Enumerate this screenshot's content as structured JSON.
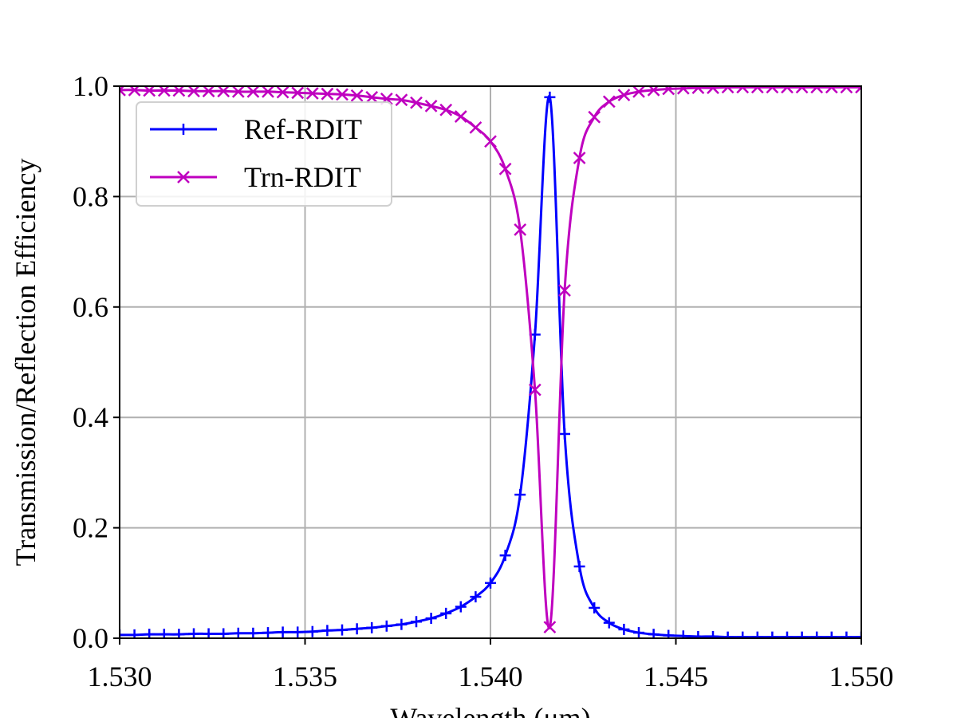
{
  "chart_data": {
    "type": "line",
    "title": "",
    "xlabel": "Wavelength (μm)",
    "ylabel": "Transmission/Reflection Efficiency",
    "xlim": [
      1.53,
      1.55
    ],
    "ylim": [
      0.0,
      1.0
    ],
    "xticks": [
      1.53,
      1.535,
      1.54,
      1.545,
      1.55
    ],
    "xtick_labels": [
      "1.530",
      "1.535",
      "1.540",
      "1.545",
      "1.550"
    ],
    "yticks": [
      0.0,
      0.2,
      0.4,
      0.6,
      0.8,
      1.0
    ],
    "ytick_labels": [
      "0.0",
      "0.2",
      "0.4",
      "0.6",
      "0.8",
      "1.0"
    ],
    "grid": true,
    "legend_position": "upper-left",
    "series": [
      {
        "name": "Ref-RDIT",
        "color": "#0000ff",
        "marker": "plus",
        "x": [
          1.53,
          1.5304,
          1.5308,
          1.5312,
          1.5316,
          1.532,
          1.5324,
          1.5328,
          1.5332,
          1.5336,
          1.534,
          1.5344,
          1.5348,
          1.5352,
          1.5356,
          1.536,
          1.5364,
          1.5368,
          1.5372,
          1.5376,
          1.538,
          1.5384,
          1.5388,
          1.5392,
          1.5396,
          1.54,
          1.5404,
          1.5408,
          1.5412,
          1.5416,
          1.542,
          1.5424,
          1.5428,
          1.5432,
          1.5436,
          1.544,
          1.5444,
          1.5448,
          1.5452,
          1.5456,
          1.546,
          1.5464,
          1.5468,
          1.5472,
          1.5476,
          1.548,
          1.5484,
          1.5488,
          1.5492,
          1.5496,
          1.55
        ],
        "y": [
          0.006,
          0.006,
          0.007,
          0.007,
          0.007,
          0.008,
          0.008,
          0.008,
          0.009,
          0.009,
          0.01,
          0.011,
          0.011,
          0.012,
          0.014,
          0.015,
          0.017,
          0.019,
          0.022,
          0.025,
          0.03,
          0.036,
          0.045,
          0.057,
          0.075,
          0.1,
          0.15,
          0.26,
          0.55,
          0.98,
          0.37,
          0.13,
          0.055,
          0.028,
          0.016,
          0.01,
          0.007,
          0.005,
          0.004,
          0.003,
          0.003,
          0.002,
          0.002,
          0.002,
          0.002,
          0.002,
          0.002,
          0.002,
          0.002,
          0.002,
          0.002
        ]
      },
      {
        "name": "Trn-RDIT",
        "color": "#bf00bf",
        "marker": "x",
        "x": [
          1.53,
          1.5304,
          1.5308,
          1.5312,
          1.5316,
          1.532,
          1.5324,
          1.5328,
          1.5332,
          1.5336,
          1.534,
          1.5344,
          1.5348,
          1.5352,
          1.5356,
          1.536,
          1.5364,
          1.5368,
          1.5372,
          1.5376,
          1.538,
          1.5384,
          1.5388,
          1.5392,
          1.5396,
          1.54,
          1.5404,
          1.5408,
          1.5412,
          1.5416,
          1.542,
          1.5424,
          1.5428,
          1.5432,
          1.5436,
          1.544,
          1.5444,
          1.5448,
          1.5452,
          1.5456,
          1.546,
          1.5464,
          1.5468,
          1.5472,
          1.5476,
          1.548,
          1.5484,
          1.5488,
          1.5492,
          1.5496,
          1.55
        ],
        "y": [
          0.993,
          0.993,
          0.992,
          0.992,
          0.992,
          0.991,
          0.991,
          0.991,
          0.99,
          0.99,
          0.99,
          0.989,
          0.988,
          0.987,
          0.986,
          0.985,
          0.983,
          0.98,
          0.977,
          0.975,
          0.97,
          0.964,
          0.957,
          0.945,
          0.925,
          0.9,
          0.85,
          0.74,
          0.45,
          0.02,
          0.63,
          0.87,
          0.944,
          0.972,
          0.984,
          0.99,
          0.993,
          0.995,
          0.996,
          0.997,
          0.997,
          0.998,
          0.998,
          0.998,
          0.998,
          0.998,
          0.998,
          0.998,
          0.998,
          0.998,
          0.998
        ]
      }
    ]
  }
}
